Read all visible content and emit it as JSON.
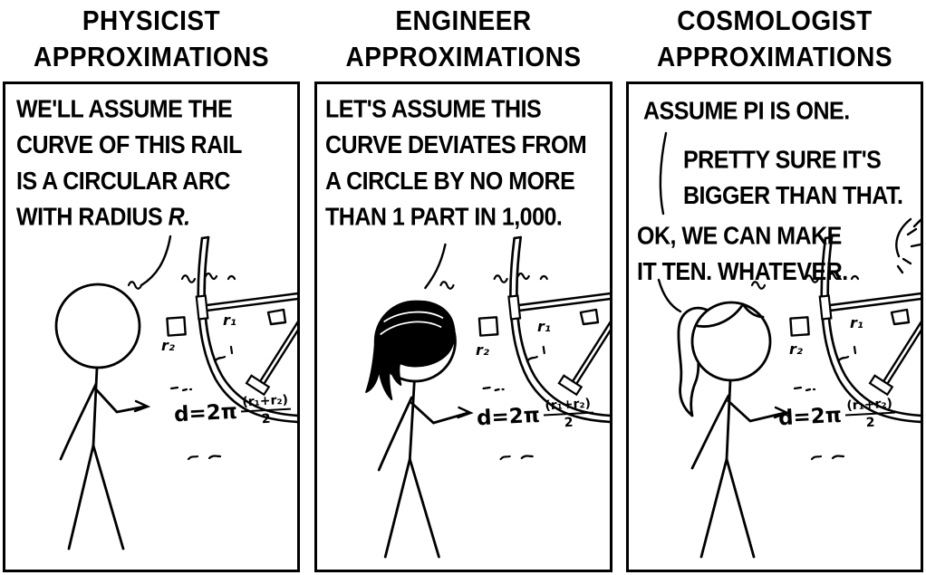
{
  "comic": {
    "ink_color": "#000000",
    "paper_color": "#ffffff",
    "panels": [
      {
        "id": "physicist",
        "title_lines": [
          "PHYSICIST",
          "APPROXIMATIONS"
        ],
        "dialogue": {
          "lines": [
            "WE'LL ASSUME THE",
            "CURVE OF THIS RAIL",
            "IS A CIRCULAR ARC"
          ],
          "line4_prefix": "WITH RADIUS ",
          "line4_radius": "R."
        },
        "formula": {
          "lhs": "d=2π",
          "numerator": "(r₁+r₂)",
          "denominator": "2"
        },
        "wheel_labels": {
          "r1": "r₁",
          "r2": "r₂"
        }
      },
      {
        "id": "engineer",
        "title_lines": [
          "ENGINEER",
          "APPROXIMATIONS"
        ],
        "dialogue": {
          "lines": [
            "LET'S ASSUME THIS",
            "CURVE DEVIATES FROM",
            "A CIRCLE BY NO MORE",
            "THAN 1 PART IN 1,000."
          ]
        },
        "formula": {
          "lhs": "d=2π",
          "numerator": "(r₁+r₂)",
          "denominator": "2"
        },
        "wheel_labels": {
          "r1": "r₁",
          "r2": "r₂"
        }
      },
      {
        "id": "cosmologist",
        "title_lines": [
          "COSMOLOGIST",
          "APPROXIMATIONS"
        ],
        "dialogue": {
          "speech1_lines": [
            "ASSUME PI IS ONE."
          ],
          "speech2_lines": [
            "PRETTY SURE IT'S",
            "BIGGER THAN THAT."
          ],
          "speech3_lines": [
            "OK, WE CAN MAKE",
            "IT TEN. WHATEVER."
          ]
        },
        "formula": {
          "lhs": "d=2π",
          "numerator": "(r₁+r₂)",
          "denominator": "2"
        },
        "wheel_labels": {
          "r1": "r₁",
          "r2": "r₂"
        }
      }
    ]
  }
}
